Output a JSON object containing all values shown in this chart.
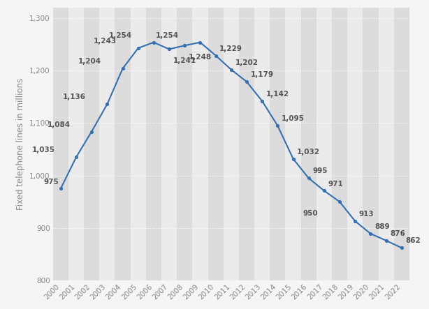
{
  "years": [
    2000,
    2001,
    2002,
    2003,
    2004,
    2005,
    2006,
    2007,
    2008,
    2009,
    2010,
    2011,
    2012,
    2013,
    2014,
    2015,
    2016,
    2017,
    2018,
    2019,
    2020,
    2021,
    2022
  ],
  "values": [
    975,
    1035,
    1084,
    1136,
    1204,
    1243,
    1254,
    1241,
    1248,
    1254,
    1229,
    1202,
    1179,
    1142,
    1095,
    1032,
    995,
    971,
    950,
    913,
    889,
    876,
    862
  ],
  "line_color": "#3570b2",
  "marker_color": "#3570b2",
  "bg_color": "#f5f5f5",
  "plot_bg_color": "#f5f5f5",
  "stripe_light": "#ebebeb",
  "stripe_dark": "#dcdcdc",
  "ylabel": "Fixed telephone lines in millions",
  "ylim": [
    800,
    1320
  ],
  "yticks": [
    800,
    900,
    1000,
    1100,
    1200,
    1300
  ],
  "ytick_labels": [
    "800",
    "900",
    "1,000",
    "1,100",
    "1,200",
    "1,300"
  ],
  "grid_color": "#ffffff",
  "label_fontsize": 7.5,
  "tick_fontsize": 7.5,
  "ylabel_fontsize": 8.5,
  "label_color": "#555555",
  "tick_color": "#888888"
}
